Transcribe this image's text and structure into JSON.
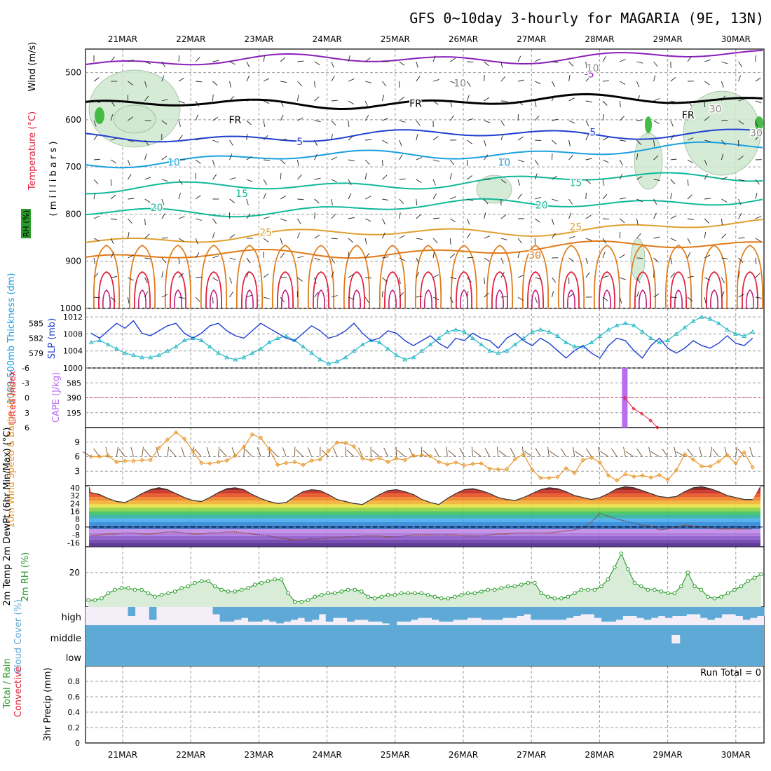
{
  "title": "GFS 0~10day 3-hourly for MAGARIA (9E, 13N)",
  "date_labels": [
    "21MAR",
    "22MAR",
    "23MAR",
    "24MAR",
    "25MAR",
    "26MAR",
    "27MAR",
    "28MAR",
    "29MAR",
    "30MAR"
  ],
  "colors": {
    "purple": "#8a1fb8",
    "black": "#000000",
    "blue": "#1f3fcf",
    "cyan": "#1aa0e0",
    "teal": "#11b89a",
    "gold": "#e0a030",
    "orange": "#e07a18",
    "red": "#e0203a",
    "magenta": "#c0167a",
    "rh_fill": "#cfe8cf",
    "green": "#2a9a2a",
    "cloud": "#5ea9d6",
    "cape": "#bb6cf0",
    "barb_brown": "#6b4a2a"
  },
  "chart_data": [
    {
      "id": "upper_air",
      "type": "contour",
      "ylabels": {
        "wind": "Wind (m/s)",
        "temp": "Temperature (°C)",
        "rh": "RH (%)",
        "units": "( m i l l i b a r s )"
      },
      "yticks": [
        "500",
        "600",
        "700",
        "800",
        "900",
        "1000"
      ],
      "ylim": [
        450,
        1000
      ],
      "freeze_label": "FR",
      "isotherms": [
        {
          "label": "-5",
          "color": "purple",
          "p": 478
        },
        {
          "label": "FR",
          "color": "black",
          "p": 570
        },
        {
          "label": "5",
          "color": "blue",
          "p": 640
        },
        {
          "label": "10",
          "color": "cyan",
          "p": 690
        },
        {
          "label": "15",
          "color": "teal",
          "p": 750
        },
        {
          "label": "20",
          "color": "teal",
          "p": 800
        },
        {
          "label": "25",
          "color": "gold",
          "p": 855
        },
        {
          "label": "30",
          "color": "orange",
          "p": 895
        }
      ],
      "contour_labels": [
        {
          "text": "-5",
          "day": 6.85,
          "p": 503,
          "color": "purple"
        },
        {
          "text": "FR",
          "day": 4.3,
          "p": 565,
          "color": "black"
        },
        {
          "text": "FR",
          "day": 1.65,
          "p": 600,
          "color": "black"
        },
        {
          "text": "FR",
          "day": 8.3,
          "p": 590,
          "color": "black"
        },
        {
          "text": "5",
          "day": 2.6,
          "p": 646,
          "color": "blue"
        },
        {
          "text": "5",
          "day": 6.9,
          "p": 626,
          "color": "blue"
        },
        {
          "text": "10",
          "day": 0.75,
          "p": 690,
          "color": "cyan"
        },
        {
          "text": "10",
          "day": 5.6,
          "p": 690,
          "color": "cyan"
        },
        {
          "text": "15",
          "day": 1.75,
          "p": 756,
          "color": "teal"
        },
        {
          "text": "15",
          "day": 6.65,
          "p": 733,
          "color": "teal"
        },
        {
          "text": "20",
          "day": 0.5,
          "p": 786,
          "color": "teal"
        },
        {
          "text": "20",
          "day": 6.15,
          "p": 781,
          "color": "teal"
        },
        {
          "text": "25",
          "day": 2.1,
          "p": 839,
          "color": "gold"
        },
        {
          "text": "25",
          "day": 6.65,
          "p": 827,
          "color": "gold"
        },
        {
          "text": "30",
          "day": 6.05,
          "p": 887,
          "color": "orange"
        },
        {
          "text": "10",
          "day": 6.9,
          "p": 490,
          "color": "gray"
        },
        {
          "text": "10",
          "day": 4.95,
          "p": 522,
          "color": "gray"
        },
        {
          "text": "30",
          "day": 8.7,
          "p": 577,
          "color": "gray"
        },
        {
          "text": "30",
          "day": 9.3,
          "p": 628,
          "color": "gray"
        }
      ]
    },
    {
      "id": "thickness_slp",
      "type": "line",
      "ylabel_left": "1000-500mb Thickness (dm)",
      "ylabel_right": "SLP (mb)",
      "left_ticks": [
        "585",
        "582",
        "579"
      ],
      "right_ticks": [
        "1012",
        "1008",
        "1004",
        "1000"
      ],
      "slp_range": [
        1000,
        1014
      ],
      "slp_values": [
        1006,
        1006.5,
        1005.5,
        1004.5,
        1003.5,
        1003,
        1002.5,
        1002.5,
        1003,
        1004,
        1005,
        1006.5,
        1007,
        1006.5,
        1005,
        1003.5,
        1002.5,
        1002,
        1002.5,
        1003.5,
        1004.5,
        1006,
        1007,
        1007.5,
        1006.5,
        1005,
        1003.5,
        1002,
        1001,
        1001.5,
        1002.5,
        1004,
        1005.5,
        1006.5,
        1006,
        1004.5,
        1003,
        1002,
        1002.5,
        1004,
        1005.5,
        1007,
        1008.5,
        1009,
        1008.5,
        1007,
        1005.5,
        1004,
        1003.5,
        1004,
        1005.5,
        1007,
        1008.5,
        1009,
        1008.5,
        1007.5,
        1006,
        1005,
        1005,
        1006,
        1007.5,
        1009,
        1010,
        1010.5,
        1010,
        1008.5,
        1007,
        1006,
        1006.5,
        1008,
        1009.5,
        1011,
        1012,
        1011.5,
        1010.5,
        1009,
        1008,
        1007.5,
        1008.5
      ],
      "thickness_values": [
        583,
        582,
        583.5,
        585,
        584,
        585.5,
        583,
        582.5,
        583.5,
        584.5,
        585,
        583,
        582,
        583,
        584.5,
        585,
        583.5,
        582.5,
        582,
        583.5,
        585,
        584,
        583,
        582,
        581.5,
        583,
        584.5,
        583.5,
        582,
        582.5,
        583.5,
        585,
        583,
        581.5,
        582,
        583.5,
        583,
        581.5,
        580.5,
        581.5,
        582.5,
        581,
        580,
        582,
        581.5,
        583,
        582,
        581.5,
        580,
        582,
        583,
        581.5,
        580.5,
        582,
        581,
        579.5,
        578,
        579.5,
        580.5,
        579,
        578,
        580.5,
        582,
        581.5,
        579.5,
        578,
        580.5,
        582,
        580,
        579,
        580,
        581.5,
        580.5,
        580,
        581,
        582.5,
        581,
        580.5,
        582
      ]
    },
    {
      "id": "cape_li",
      "type": "bar+line",
      "ylabel_left": "Lifted Index",
      "ylabel_right": "CAPE (J/kg)",
      "li_ticks": [
        "-6",
        "-3",
        "0",
        "3",
        "6"
      ],
      "cape_ticks": [
        "585",
        "390",
        "195"
      ],
      "cape_bar": {
        "day": 7.37,
        "value": 780
      },
      "li_points": [
        {
          "day": 7.37,
          "value": 0
        },
        {
          "day": 7.5,
          "value": 2.2
        },
        {
          "day": 7.62,
          "value": 3.2
        },
        {
          "day": 7.75,
          "value": 4.6
        },
        {
          "day": 7.85,
          "value": 6
        }
      ]
    },
    {
      "id": "wind10m",
      "type": "line",
      "ylabel": "10m Wind Speed & Barbs (m/s)",
      "yticks": [
        "9",
        "6",
        "3"
      ],
      "ylim": [
        0,
        12
      ],
      "values": [
        6,
        6,
        6.2,
        4.9,
        5.1,
        5.1,
        5.3,
        5.3,
        7.8,
        9.5,
        11,
        9.7,
        7.2,
        4.7,
        4.6,
        4.9,
        5.2,
        6.2,
        8,
        10.6,
        9.9,
        7.5,
        4.3,
        4.7,
        4.9,
        4.3,
        5.2,
        5.4,
        7.2,
        8.9,
        8.8,
        8.1,
        5.6,
        5.3,
        5.7,
        4.9,
        5.6,
        5.3,
        6.2,
        6.3,
        6.1,
        4.9,
        4.4,
        4.8,
        4.2,
        4.5,
        4.6,
        3.5,
        3.4,
        3.4,
        5.5,
        6.5,
        3.3,
        1.6,
        1.6,
        1.8,
        3.6,
        2.6,
        5.3,
        5.8,
        4.8,
        2.1,
        1.1,
        2.4,
        1.9,
        2.1,
        1.7,
        2.2,
        1.2,
        3.2,
        6.5,
        5.4,
        4,
        4,
        5,
        6.3,
        4.6,
        6.9,
        3.8
      ]
    },
    {
      "id": "temp2m",
      "type": "line",
      "ylabel": "2m Temp 2m DewPt (6hr Min/Max) (°C)",
      "yticks": [
        "40",
        "32",
        "24",
        "16",
        "8",
        "0",
        "-8",
        "-16"
      ],
      "ylim": [
        -20,
        42
      ],
      "temp_values": [
        35,
        33,
        29,
        26,
        25,
        29,
        34,
        38,
        40,
        38,
        34,
        30,
        27,
        26,
        30,
        35,
        39,
        40,
        38,
        33,
        29,
        26,
        24,
        25,
        31,
        36,
        38,
        37,
        33,
        28,
        26,
        24,
        23,
        28,
        33,
        37,
        38,
        36,
        33,
        28,
        25,
        23,
        29,
        34,
        38,
        39,
        37,
        34,
        30,
        28,
        27,
        30,
        34,
        38,
        40,
        39,
        36,
        32,
        30,
        28,
        30,
        34,
        39,
        41,
        40,
        37,
        34,
        31,
        30,
        31,
        36,
        40,
        41,
        39,
        36,
        32,
        30,
        28,
        28
      ],
      "dew_values": [
        -9,
        -8,
        -7,
        -7,
        -6,
        -6,
        -7,
        -7,
        -6,
        -5,
        -5,
        -6,
        -7,
        -7,
        -6,
        -6,
        -5,
        -5,
        -6,
        -7,
        -8,
        -9,
        -11,
        -12,
        -13,
        -13,
        -12,
        -12,
        -11,
        -11,
        -10,
        -10,
        -9,
        -9,
        -9,
        -10,
        -10,
        -9,
        -8,
        -8,
        -8,
        -8,
        -8,
        -8,
        -9,
        -9,
        -9,
        -8,
        -7,
        -7,
        -6,
        -6,
        -6,
        -6,
        -6,
        -5,
        -4,
        -3,
        -1,
        5,
        14,
        11,
        8,
        6,
        4,
        2,
        1,
        -3,
        -2,
        0,
        2,
        1,
        0,
        -1,
        -2,
        -2,
        -2,
        -2,
        -2
      ]
    },
    {
      "id": "rh2m",
      "type": "area",
      "ylabel": "2m RH (%)",
      "yticks": [
        "20"
      ],
      "ylim": [
        0,
        35
      ],
      "values": [
        4,
        4,
        5,
        8,
        10,
        11,
        11,
        10,
        10,
        8,
        6,
        7,
        8,
        9,
        11,
        12,
        14,
        15,
        15,
        12,
        10,
        9,
        9,
        10,
        11,
        13,
        14,
        15,
        16,
        16,
        8,
        3,
        3,
        4,
        6,
        7,
        8,
        8,
        9,
        10,
        10,
        9,
        6,
        5,
        6,
        7,
        7,
        8,
        8,
        8,
        8,
        7,
        6,
        5,
        5,
        6,
        7,
        8,
        8,
        9,
        10,
        10,
        11,
        12,
        12,
        13,
        14,
        14,
        8,
        6,
        5,
        5,
        6,
        8,
        10,
        10,
        10,
        12,
        16,
        23,
        31,
        22,
        14,
        12,
        10,
        10,
        9,
        8,
        8,
        12,
        20,
        12,
        10,
        6,
        5,
        6,
        8,
        10,
        12,
        15,
        17,
        19
      ],
      "x_start_day": 0
    },
    {
      "id": "cloud",
      "type": "bar",
      "ylabel": "Cloud Cover (%)",
      "levels": [
        "high",
        "middle",
        "low"
      ],
      "high_values": [
        0,
        0,
        0,
        0,
        0,
        0,
        50,
        0,
        0,
        70,
        0,
        0,
        0,
        0,
        0,
        0,
        0,
        0,
        40,
        80,
        80,
        70,
        60,
        80,
        80,
        70,
        80,
        90,
        80,
        70,
        60,
        80,
        70,
        40,
        80,
        60,
        60,
        80,
        70,
        70,
        80,
        80,
        90,
        100,
        80,
        80,
        70,
        60,
        60,
        70,
        80,
        80,
        70,
        70,
        60,
        60,
        70,
        70,
        70,
        60,
        60,
        50,
        40,
        70,
        70,
        70,
        70,
        70,
        60,
        50,
        40,
        40,
        60,
        80,
        80,
        70,
        50,
        50,
        60,
        70,
        60,
        50,
        60,
        50,
        50,
        40,
        40,
        60,
        70,
        60,
        40,
        40,
        50,
        70,
        60,
        50
      ],
      "middle_gap_day": 8.12
    },
    {
      "id": "precip",
      "type": "bar",
      "ylabel": "3hr Precip (mm)",
      "ylabel_total": "Total / Rain",
      "ylabel_conv": "Convective",
      "yticks": [
        "0.8",
        "0.6",
        "0.4",
        "0.2",
        "0"
      ],
      "ylim": [
        0,
        1
      ],
      "run_total": "Run Total = 0",
      "values": []
    }
  ]
}
